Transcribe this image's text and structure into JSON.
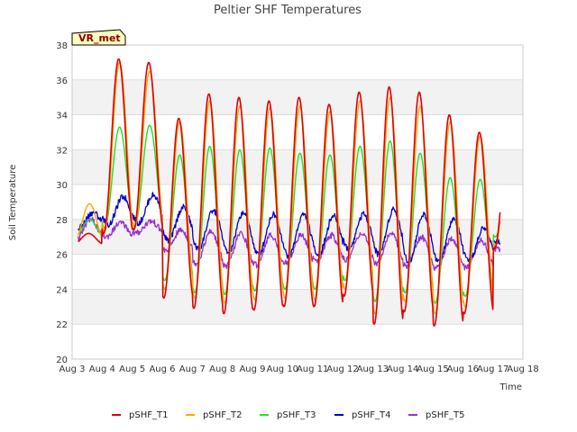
{
  "chart_data": {
    "type": "line",
    "title": "Peltier SHF Temperatures",
    "xlabel": "Time",
    "ylabel": "Soil Temperature",
    "badge": "VR_met",
    "x_ticks": [
      "Aug 3",
      "Aug 4",
      "Aug 5",
      "Aug 6",
      "Aug 7",
      "Aug 8",
      "Aug 9",
      "Aug 10",
      "Aug 11",
      "Aug 12",
      "Aug 13",
      "Aug 14",
      "Aug 15",
      "Aug 16",
      "Aug 17",
      "Aug 18"
    ],
    "xlim": [
      3,
      18
    ],
    "ylim": [
      20,
      38
    ],
    "y_ticks": [
      "20",
      "22",
      "24",
      "26",
      "28",
      "30",
      "32",
      "34",
      "36",
      "38"
    ],
    "legend_position": "bottom",
    "grid": "alternating horizontal bands",
    "days": [
      "Aug 3",
      "Aug 4",
      "Aug 5",
      "Aug 6",
      "Aug 7",
      "Aug 8",
      "Aug 9",
      "Aug 10",
      "Aug 11",
      "Aug 12",
      "Aug 13",
      "Aug 14",
      "Aug 15",
      "Aug 16",
      "Aug 17"
    ],
    "series": [
      {
        "name": "pSHF_T1",
        "color": "#e00000",
        "width": 1.6,
        "daily_max": [
          27.2,
          37.2,
          37.0,
          33.8,
          35.2,
          35.0,
          34.8,
          35.0,
          34.6,
          35.3,
          35.6,
          35.3,
          34.0,
          33.0,
          33.0
        ],
        "daily_min": [
          26.6,
          27.2,
          27.4,
          23.5,
          22.9,
          22.6,
          22.8,
          23.0,
          23.0,
          23.6,
          22.0,
          22.7,
          21.9,
          22.6,
          26.3
        ]
      },
      {
        "name": "pSHF_T2",
        "color": "#ffa500",
        "width": 1.4,
        "daily_max": [
          28.9,
          37.0,
          36.5,
          33.6,
          34.8,
          34.5,
          34.4,
          34.5,
          34.2,
          34.8,
          35.0,
          34.5,
          33.6,
          32.8,
          32.6
        ],
        "daily_min": [
          26.8,
          27.3,
          27.5,
          24.0,
          23.5,
          23.2,
          23.4,
          23.5,
          23.4,
          24.0,
          22.6,
          23.3,
          22.6,
          23.0,
          26.5
        ]
      },
      {
        "name": "pSHF_T3",
        "color": "#22e022",
        "width": 1.4,
        "daily_max": [
          28.0,
          33.3,
          33.4,
          31.7,
          32.2,
          32.0,
          32.1,
          31.8,
          31.7,
          32.2,
          32.5,
          31.8,
          30.4,
          30.3,
          30.5
        ],
        "daily_min": [
          27.0,
          27.5,
          27.6,
          24.5,
          23.8,
          23.7,
          23.9,
          24.0,
          24.0,
          24.5,
          23.3,
          23.8,
          23.2,
          23.6,
          27.0
        ]
      },
      {
        "name": "pSHF_T4",
        "color": "#0000cc",
        "width": 1.3,
        "daily_max": [
          28.4,
          29.3,
          29.4,
          28.7,
          28.5,
          28.4,
          28.3,
          28.3,
          28.2,
          28.3,
          28.6,
          28.3,
          28.0,
          27.5,
          27.5
        ],
        "daily_min": [
          27.5,
          27.7,
          27.8,
          26.8,
          26.3,
          26.1,
          26.0,
          25.9,
          26.0,
          26.3,
          26.0,
          25.6,
          25.6,
          25.6,
          26.7
        ]
      },
      {
        "name": "pSHF_T5",
        "color": "#9932cc",
        "width": 1.3,
        "daily_max": [
          28.0,
          27.8,
          27.9,
          27.4,
          27.3,
          27.2,
          27.1,
          27.1,
          27.1,
          27.2,
          27.2,
          27.0,
          26.9,
          26.8,
          26.6
        ],
        "daily_min": [
          26.8,
          27.0,
          27.2,
          26.2,
          25.5,
          25.3,
          25.4,
          25.5,
          25.6,
          25.7,
          25.5,
          25.3,
          25.2,
          25.2,
          26.3
        ]
      }
    ]
  }
}
